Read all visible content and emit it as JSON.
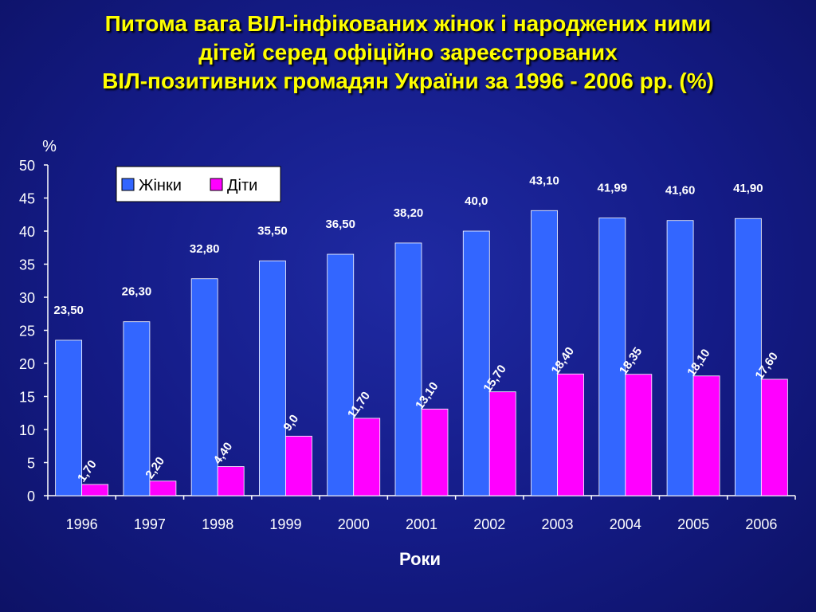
{
  "title_lines": [
    "Питома вага  ВІЛ-інфікованих жінок і народжених ними",
    "дітей серед офіційно зареєстрованих",
    "ВІЛ-позитивних громадян  України за 1996 - 2006 рр. (%)"
  ],
  "colors": {
    "background": "#141b86",
    "title": "#ffff00",
    "women": "#3366ff",
    "children": "#ff00ff",
    "text": "#ffffff"
  },
  "chart_data": {
    "type": "bar",
    "title": "Питома вага  ВІЛ-інфікованих жінок і народжених ними дітей серед офіційно зареєстрованих ВІЛ-позитивних громадян  України за 1996 - 2006 рр. (%)",
    "ylabel": "%",
    "xlabel": "Роки",
    "ylim": [
      0,
      50
    ],
    "yticks": [
      "0",
      "5",
      "10",
      "15",
      "20",
      "25",
      "30",
      "35",
      "40",
      "45",
      "50"
    ],
    "categories": [
      "1996",
      "1997",
      "1998",
      "1999",
      "2000",
      "2001",
      "2002",
      "2003",
      "2004",
      "2005",
      "2006"
    ],
    "series": [
      {
        "name": "Жінки",
        "values": [
          23.5,
          26.3,
          32.8,
          35.5,
          36.5,
          38.2,
          40.0,
          43.1,
          41.99,
          41.6,
          41.9
        ],
        "labels": [
          "23,50",
          "26,30",
          "32,80",
          "35,50",
          "36,50",
          "38,20",
          "40,0",
          "43,10",
          "41,99",
          "41,60",
          "41,90"
        ]
      },
      {
        "name": "Діти",
        "values": [
          1.7,
          2.2,
          4.4,
          9.0,
          11.7,
          13.1,
          15.7,
          18.4,
          18.35,
          18.1,
          17.6
        ],
        "labels": [
          "1,70",
          "2,20",
          "4,40",
          "9,0",
          "11,70",
          "13,10",
          "15,70",
          "18,40",
          "18,35",
          "18,10",
          "17,60"
        ]
      }
    ],
    "legend_position": "top-left",
    "grid": false
  }
}
